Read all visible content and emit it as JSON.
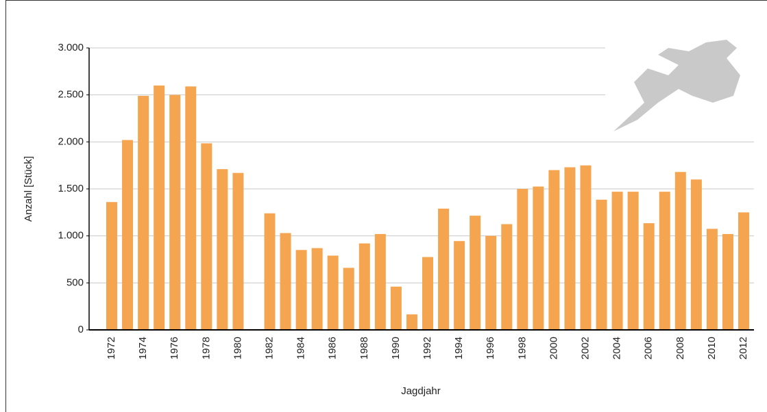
{
  "chart_data": {
    "type": "bar",
    "x_label": "Jagdjahr",
    "y_label": "Anzahl [Stück]",
    "categories": [
      "1972",
      null,
      "1974",
      null,
      "1976",
      null,
      "1978",
      null,
      "1980",
      null,
      "1982",
      null,
      "1984",
      null,
      "1986",
      null,
      "1988",
      null,
      "1990",
      null,
      "1992",
      null,
      "1994",
      null,
      "1996",
      null,
      "1998",
      null,
      "2000",
      null,
      "2002",
      null,
      "2004",
      null,
      "2006",
      null,
      "2008",
      null,
      "2010",
      null,
      "2012"
    ],
    "values": [
      1360,
      2020,
      2490,
      2600,
      2500,
      2590,
      1985,
      1710,
      1670,
      null,
      1240,
      1030,
      850,
      870,
      790,
      660,
      920,
      1020,
      460,
      165,
      775,
      1290,
      945,
      1215,
      1000,
      1125,
      1500,
      1525,
      1700,
      1730,
      1750,
      1385,
      1470,
      1470,
      1135,
      1470,
      1680,
      1600,
      1075,
      1020,
      1250
    ],
    "color": "#f5a550",
    "ylim": [
      0,
      3000
    ],
    "yticks": [
      0,
      500,
      {
        "value": 1000,
        "label": "1.000"
      },
      {
        "value": 1500,
        "label": "1.500"
      },
      {
        "value": 2000,
        "label": "2.000"
      },
      {
        "value": 2500,
        "label": "2.500"
      },
      {
        "value": 3000,
        "label": "3.000"
      }
    ],
    "grid": true
  }
}
